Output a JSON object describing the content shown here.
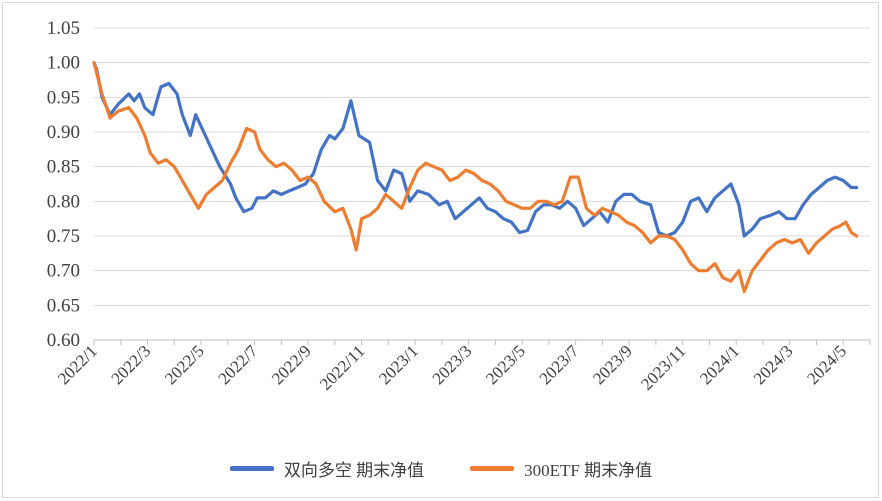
{
  "chart_data": {
    "type": "line",
    "title": "",
    "xlabel": "",
    "ylabel": "",
    "ylim": [
      0.6,
      1.05
    ],
    "yticks": [
      "0.60",
      "0.65",
      "0.70",
      "0.75",
      "0.80",
      "0.85",
      "0.90",
      "0.95",
      "1.00",
      "1.05"
    ],
    "x_tick_labels": [
      "2022/1",
      "2022/3",
      "2022/5",
      "2022/7",
      "2022/9",
      "2022/11",
      "2023/1",
      "2023/3",
      "2023/5",
      "2023/7",
      "2023/9",
      "2023/11",
      "2024/1",
      "2024/3",
      "2024/5"
    ],
    "x_range_months": [
      0,
      29
    ],
    "grid": true,
    "legend_position": "bottom",
    "series": [
      {
        "name": "双向多空 期末净值",
        "color": "#4472C4",
        "points": [
          [
            0,
            1.0
          ],
          [
            0.1,
            0.99
          ],
          [
            0.3,
            0.95
          ],
          [
            0.6,
            0.925
          ],
          [
            0.9,
            0.94
          ],
          [
            1.3,
            0.955
          ],
          [
            1.5,
            0.945
          ],
          [
            1.7,
            0.955
          ],
          [
            1.9,
            0.935
          ],
          [
            2.2,
            0.925
          ],
          [
            2.5,
            0.965
          ],
          [
            2.8,
            0.97
          ],
          [
            3.1,
            0.955
          ],
          [
            3.3,
            0.925
          ],
          [
            3.6,
            0.895
          ],
          [
            3.8,
            0.925
          ],
          [
            4.1,
            0.9
          ],
          [
            4.4,
            0.875
          ],
          [
            4.7,
            0.85
          ],
          [
            5.1,
            0.825
          ],
          [
            5.3,
            0.805
          ],
          [
            5.6,
            0.785
          ],
          [
            5.9,
            0.79
          ],
          [
            6.1,
            0.805
          ],
          [
            6.4,
            0.805
          ],
          [
            6.7,
            0.815
          ],
          [
            7.0,
            0.81
          ],
          [
            7.3,
            0.815
          ],
          [
            7.6,
            0.82
          ],
          [
            7.9,
            0.825
          ],
          [
            8.2,
            0.84
          ],
          [
            8.5,
            0.875
          ],
          [
            8.8,
            0.895
          ],
          [
            9.0,
            0.89
          ],
          [
            9.3,
            0.905
          ],
          [
            9.6,
            0.945
          ],
          [
            9.9,
            0.895
          ],
          [
            10.3,
            0.885
          ],
          [
            10.6,
            0.83
          ],
          [
            10.9,
            0.815
          ],
          [
            11.2,
            0.845
          ],
          [
            11.5,
            0.84
          ],
          [
            11.8,
            0.8
          ],
          [
            12.1,
            0.815
          ],
          [
            12.5,
            0.81
          ],
          [
            12.9,
            0.795
          ],
          [
            13.2,
            0.8
          ],
          [
            13.5,
            0.775
          ],
          [
            13.8,
            0.785
          ],
          [
            14.1,
            0.795
          ],
          [
            14.4,
            0.805
          ],
          [
            14.7,
            0.79
          ],
          [
            15.0,
            0.785
          ],
          [
            15.3,
            0.775
          ],
          [
            15.6,
            0.77
          ],
          [
            15.9,
            0.755
          ],
          [
            16.2,
            0.758
          ],
          [
            16.5,
            0.785
          ],
          [
            16.8,
            0.795
          ],
          [
            17.1,
            0.795
          ],
          [
            17.4,
            0.79
          ],
          [
            17.7,
            0.8
          ],
          [
            18.0,
            0.79
          ],
          [
            18.3,
            0.765
          ],
          [
            18.6,
            0.775
          ],
          [
            18.9,
            0.785
          ],
          [
            19.2,
            0.77
          ],
          [
            19.5,
            0.8
          ],
          [
            19.8,
            0.81
          ],
          [
            20.1,
            0.81
          ],
          [
            20.4,
            0.8
          ],
          [
            20.8,
            0.795
          ],
          [
            21.1,
            0.755
          ],
          [
            21.4,
            0.75
          ],
          [
            21.7,
            0.755
          ],
          [
            22.0,
            0.77
          ],
          [
            22.3,
            0.8
          ],
          [
            22.6,
            0.805
          ],
          [
            22.9,
            0.785
          ],
          [
            23.2,
            0.805
          ],
          [
            23.5,
            0.815
          ],
          [
            23.8,
            0.825
          ],
          [
            24.1,
            0.795
          ],
          [
            24.3,
            0.75
          ],
          [
            24.6,
            0.76
          ],
          [
            24.9,
            0.775
          ],
          [
            25.3,
            0.78
          ],
          [
            25.6,
            0.785
          ],
          [
            25.9,
            0.775
          ],
          [
            26.2,
            0.775
          ],
          [
            26.5,
            0.795
          ],
          [
            26.8,
            0.81
          ],
          [
            27.1,
            0.82
          ],
          [
            27.4,
            0.83
          ],
          [
            27.7,
            0.835
          ],
          [
            28.0,
            0.83
          ],
          [
            28.3,
            0.82
          ],
          [
            28.5,
            0.82
          ]
        ]
      },
      {
        "name": "300ETF 期末净值",
        "color": "#ED7D31",
        "points": [
          [
            0,
            1.0
          ],
          [
            0.1,
            0.985
          ],
          [
            0.3,
            0.955
          ],
          [
            0.6,
            0.92
          ],
          [
            0.9,
            0.93
          ],
          [
            1.3,
            0.935
          ],
          [
            1.6,
            0.92
          ],
          [
            1.9,
            0.895
          ],
          [
            2.1,
            0.87
          ],
          [
            2.4,
            0.855
          ],
          [
            2.7,
            0.86
          ],
          [
            3.0,
            0.85
          ],
          [
            3.3,
            0.83
          ],
          [
            3.6,
            0.81
          ],
          [
            3.9,
            0.79
          ],
          [
            4.2,
            0.81
          ],
          [
            4.5,
            0.82
          ],
          [
            4.8,
            0.83
          ],
          [
            5.1,
            0.855
          ],
          [
            5.4,
            0.875
          ],
          [
            5.7,
            0.905
          ],
          [
            6.0,
            0.9
          ],
          [
            6.2,
            0.875
          ],
          [
            6.5,
            0.86
          ],
          [
            6.8,
            0.85
          ],
          [
            7.1,
            0.855
          ],
          [
            7.4,
            0.845
          ],
          [
            7.7,
            0.83
          ],
          [
            8.0,
            0.835
          ],
          [
            8.3,
            0.825
          ],
          [
            8.6,
            0.8
          ],
          [
            9.0,
            0.785
          ],
          [
            9.3,
            0.79
          ],
          [
            9.6,
            0.76
          ],
          [
            9.8,
            0.73
          ],
          [
            10.0,
            0.775
          ],
          [
            10.3,
            0.78
          ],
          [
            10.6,
            0.79
          ],
          [
            10.9,
            0.81
          ],
          [
            11.2,
            0.8
          ],
          [
            11.5,
            0.79
          ],
          [
            11.8,
            0.82
          ],
          [
            12.1,
            0.845
          ],
          [
            12.4,
            0.855
          ],
          [
            12.7,
            0.85
          ],
          [
            13.0,
            0.845
          ],
          [
            13.3,
            0.83
          ],
          [
            13.6,
            0.835
          ],
          [
            13.9,
            0.845
          ],
          [
            14.2,
            0.84
          ],
          [
            14.5,
            0.83
          ],
          [
            14.8,
            0.825
          ],
          [
            15.1,
            0.815
          ],
          [
            15.4,
            0.8
          ],
          [
            15.7,
            0.795
          ],
          [
            16.0,
            0.79
          ],
          [
            16.3,
            0.79
          ],
          [
            16.6,
            0.8
          ],
          [
            16.9,
            0.8
          ],
          [
            17.2,
            0.795
          ],
          [
            17.5,
            0.8
          ],
          [
            17.8,
            0.835
          ],
          [
            18.1,
            0.835
          ],
          [
            18.4,
            0.79
          ],
          [
            18.7,
            0.78
          ],
          [
            19.0,
            0.79
          ],
          [
            19.3,
            0.785
          ],
          [
            19.6,
            0.78
          ],
          [
            19.9,
            0.77
          ],
          [
            20.2,
            0.765
          ],
          [
            20.5,
            0.755
          ],
          [
            20.8,
            0.74
          ],
          [
            21.1,
            0.75
          ],
          [
            21.4,
            0.75
          ],
          [
            21.7,
            0.745
          ],
          [
            22.0,
            0.73
          ],
          [
            22.3,
            0.71
          ],
          [
            22.6,
            0.7
          ],
          [
            22.9,
            0.7
          ],
          [
            23.2,
            0.71
          ],
          [
            23.5,
            0.69
          ],
          [
            23.8,
            0.685
          ],
          [
            24.1,
            0.7
          ],
          [
            24.3,
            0.67
          ],
          [
            24.6,
            0.7
          ],
          [
            24.9,
            0.715
          ],
          [
            25.2,
            0.73
          ],
          [
            25.5,
            0.74
          ],
          [
            25.8,
            0.745
          ],
          [
            26.1,
            0.74
          ],
          [
            26.4,
            0.745
          ],
          [
            26.7,
            0.725
          ],
          [
            27.0,
            0.74
          ],
          [
            27.3,
            0.75
          ],
          [
            27.6,
            0.76
          ],
          [
            27.9,
            0.765
          ],
          [
            28.1,
            0.77
          ],
          [
            28.3,
            0.755
          ],
          [
            28.5,
            0.75
          ]
        ]
      }
    ]
  }
}
